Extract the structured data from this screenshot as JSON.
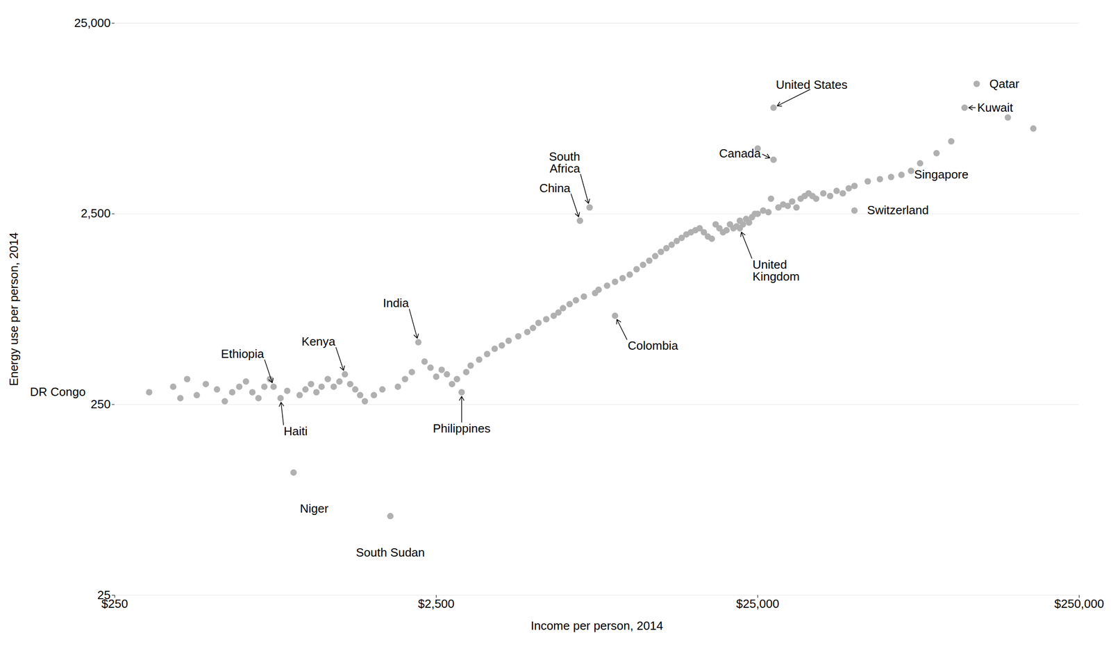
{
  "chart_data": {
    "type": "scatter",
    "xlabel": "Income per person, 2014",
    "ylabel": "Energy use per person, 2014",
    "log": true,
    "grid": "y",
    "color": "#b0b0b0",
    "xlim": [
      250,
      250000
    ],
    "ylim": [
      25,
      25000
    ],
    "xticks": [
      {
        "value": 250,
        "label": "$250"
      },
      {
        "value": 2500,
        "label": "$2,500"
      },
      {
        "value": 25000,
        "label": "$25,000"
      },
      {
        "value": 250000,
        "label": "$250,000"
      }
    ],
    "yticks": [
      25,
      250,
      {
        "value": 2500,
        "label": "2,500"
      },
      {
        "value": 25000,
        "label": "25,000"
      }
    ],
    "x": [
      320,
      380,
      400,
      420,
      450,
      480,
      520,
      550,
      580,
      610,
      640,
      670,
      700,
      730,
      760,
      780,
      820,
      860,
      900,
      940,
      980,
      1020,
      1060,
      1100,
      1150,
      1200,
      1250,
      1300,
      1350,
      1400,
      1450,
      1500,
      1600,
      1700,
      1800,
      1900,
      2000,
      2100,
      2200,
      2300,
      2400,
      2500,
      2600,
      2700,
      2800,
      2900,
      3000,
      3100,
      3200,
      3400,
      3600,
      3800,
      4000,
      4200,
      4500,
      4800,
      5000,
      5200,
      5500,
      5800,
      6000,
      6200,
      6500,
      6800,
      7000,
      7200,
      7500,
      7800,
      8000,
      8500,
      9000,
      9000,
      9500,
      10000,
      10500,
      11000,
      11500,
      12000,
      12500,
      13000,
      13500,
      14000,
      14500,
      15000,
      15500,
      16000,
      16500,
      17000,
      17500,
      18000,
      18500,
      19000,
      19500,
      20000,
      20500,
      21000,
      21500,
      22000,
      22000,
      22500,
      23000,
      23500,
      24000,
      24500,
      25000,
      25000,
      26000,
      27000,
      27500,
      28000,
      28000,
      29000,
      30000,
      31000,
      32000,
      33000,
      34000,
      35000,
      36000,
      37000,
      38000,
      40000,
      42000,
      44000,
      46000,
      48000,
      50000,
      50000,
      55000,
      60000,
      65000,
      70000,
      75000,
      80000,
      90000,
      100000,
      110000,
      120000,
      150000,
      180000
    ],
    "values": [
      290,
      310,
      270,
      340,
      280,
      320,
      300,
      260,
      290,
      310,
      330,
      290,
      270,
      310,
      340,
      310,
      270,
      295,
      110,
      280,
      300,
      320,
      290,
      310,
      340,
      310,
      330,
      360,
      320,
      300,
      280,
      260,
      280,
      300,
      65,
      310,
      340,
      370,
      530,
      420,
      390,
      350,
      380,
      360,
      320,
      340,
      290,
      370,
      400,
      430,
      460,
      490,
      510,
      540,
      570,
      600,
      630,
      670,
      700,
      730,
      760,
      800,
      840,
      880,
      2300,
      920,
      2700,
      960,
      1000,
      1050,
      730,
      1100,
      1150,
      1200,
      1280,
      1350,
      1420,
      1500,
      1580,
      1650,
      1720,
      1800,
      1870,
      1950,
      2000,
      2050,
      2100,
      2000,
      1900,
      1850,
      2200,
      2100,
      2000,
      2050,
      2200,
      2100,
      2150,
      2100,
      2300,
      2200,
      2350,
      2250,
      2400,
      2500,
      5500,
      2500,
      2600,
      2550,
      3000,
      4800,
      9000,
      2700,
      2800,
      2750,
      2900,
      2700,
      3000,
      3100,
      3200,
      3100,
      3000,
      3200,
      3100,
      3300,
      3200,
      3400,
      2600,
      3500,
      3700,
      3800,
      3900,
      4000,
      4200,
      4600,
      5200,
      6000,
      9000,
      12000,
      8000,
      7000
    ],
    "annotations": [
      {
        "label": "DR Congo",
        "x": 320,
        "y": 290
      },
      {
        "label": "Ethiopia",
        "x": 780,
        "y": 310
      },
      {
        "label": "Haiti",
        "x": 820,
        "y": 270
      },
      {
        "label": "Kenya",
        "x": 1300,
        "y": 360
      },
      {
        "label": "Niger",
        "x": 900,
        "y": 110
      },
      {
        "label": "South Sudan",
        "x": 1800,
        "y": 65
      },
      {
        "label": "India",
        "x": 2200,
        "y": 530
      },
      {
        "label": "Philippines",
        "x": 3000,
        "y": 290
      },
      {
        "label": "China",
        "x": 7000,
        "y": 2300
      },
      {
        "label": "South\nAfrica",
        "x": 7500,
        "y": 2700
      },
      {
        "label": "Colombia",
        "x": 9000,
        "y": 730
      },
      {
        "label": "United\nKingdom",
        "x": 22000,
        "y": 2100
      },
      {
        "label": "Canada",
        "x": 28000,
        "y": 4800
      },
      {
        "label": "United States",
        "x": 28000,
        "y": 9000
      },
      {
        "label": "Switzerland",
        "x": 50000,
        "y": 2600
      },
      {
        "label": "Singapore",
        "x": 70000,
        "y": 4000
      },
      {
        "label": "Kuwait",
        "x": 110000,
        "y": 9000
      },
      {
        "label": "Qatar",
        "x": 120000,
        "y": 12000
      }
    ]
  }
}
